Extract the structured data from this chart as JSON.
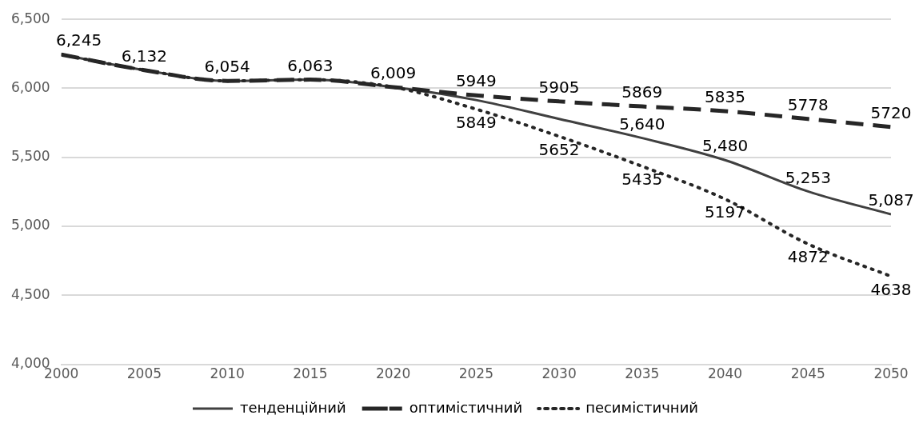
{
  "chart_data": {
    "type": "line",
    "x": [
      2000,
      2005,
      2010,
      2015,
      2020,
      2025,
      2030,
      2035,
      2040,
      2045,
      2050
    ],
    "series": [
      {
        "name": "тенденційний",
        "color": "#404040",
        "line_style": "solid",
        "values": [
          6245,
          6132,
          6054,
          6063,
          6009,
          5915,
          5778,
          5640,
          5480,
          5253,
          5087
        ],
        "value_labels": [
          "6,245",
          "6,132",
          "6,054",
          "6,063",
          "6,009",
          null,
          null,
          "5,640",
          "5,480",
          "5,253",
          "5,087"
        ]
      },
      {
        "name": "оптимістичний",
        "color": "#262626",
        "line_style": "dashed",
        "values": [
          6245,
          6132,
          6054,
          6063,
          6009,
          5949,
          5905,
          5869,
          5835,
          5778,
          5720
        ],
        "value_labels": [
          null,
          null,
          null,
          null,
          null,
          "5949",
          "5905",
          "5869",
          "5835",
          "5778",
          "5720"
        ]
      },
      {
        "name": "песимістичний",
        "color": "#262626",
        "line_style": "dotted",
        "values": [
          6245,
          6132,
          6054,
          6063,
          6009,
          5849,
          5652,
          5435,
          5197,
          4872,
          4638
        ],
        "value_labels": [
          null,
          null,
          null,
          null,
          null,
          "5849",
          "5652",
          "5435",
          "5197",
          "4872",
          "4638"
        ]
      }
    ],
    "xlim": [
      2000,
      2050
    ],
    "xticks": [
      2000,
      2005,
      2010,
      2015,
      2020,
      2025,
      2030,
      2035,
      2040,
      2045,
      2050
    ],
    "ylim": [
      4000,
      6500
    ],
    "yticks": [
      {
        "value": 4000,
        "label": "4,000"
      },
      {
        "value": 4500,
        "label": "4,500"
      },
      {
        "value": 5000,
        "label": "5,000"
      },
      {
        "value": 5500,
        "label": "5,500"
      },
      {
        "value": 6000,
        "label": "6,000"
      },
      {
        "value": 6500,
        "label": "6,500"
      }
    ],
    "grid": "y",
    "legend": "bottom",
    "marker": "none"
  }
}
